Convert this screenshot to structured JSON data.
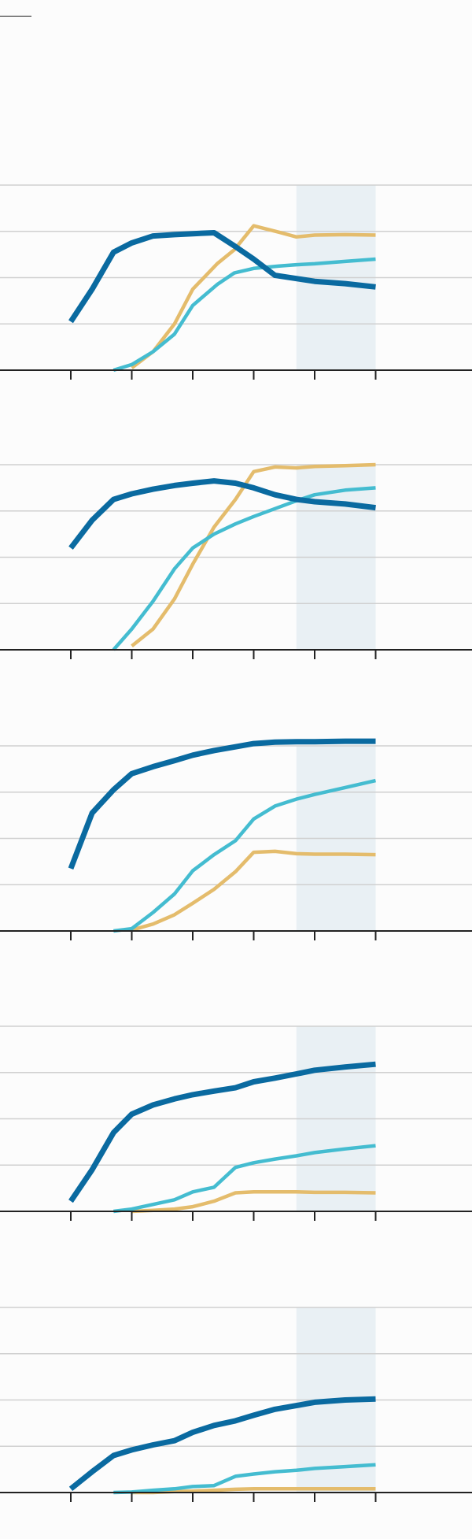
{
  "colors": {
    "background": "#fcfcfc",
    "gridline": "#d0d0d0",
    "axis": "#222222",
    "forecast_shade": "#e9f0f4",
    "series_dark": "#0a6aa0",
    "series_light": "#44bcd0",
    "series_gold": "#e4bc6c"
  },
  "chart_data": [
    {
      "type": "line",
      "grid": true,
      "legend": "none",
      "ylim": [
        0,
        4
      ],
      "x_ticks": [
        0,
        1,
        2,
        3,
        4,
        5
      ],
      "forecast_span": [
        3.7,
        5
      ],
      "series": [
        {
          "color": "series_gold",
          "x": [
            1.0,
            1.35,
            1.7,
            2.0,
            2.4,
            2.68,
            3.0,
            3.42,
            3.7,
            4.0,
            4.5,
            5.0
          ],
          "y": [
            0.05,
            0.4,
            1.0,
            1.75,
            2.3,
            2.6,
            3.12,
            2.98,
            2.88,
            2.92,
            2.93,
            2.92
          ]
        },
        {
          "color": "series_light",
          "x": [
            0.7,
            1.0,
            1.35,
            1.7,
            2.0,
            2.4,
            2.68,
            3.0,
            3.42,
            3.7,
            4.0,
            4.5,
            5.0
          ],
          "y": [
            0.0,
            0.12,
            0.4,
            0.78,
            1.4,
            1.85,
            2.1,
            2.2,
            2.25,
            2.28,
            2.3,
            2.35,
            2.4
          ]
        },
        {
          "color": "series_dark",
          "x": [
            0.0,
            0.35,
            0.7,
            1.0,
            1.35,
            1.7,
            2.0,
            2.35,
            2.7,
            3.0,
            3.35,
            3.7,
            4.0,
            4.5,
            5.0
          ],
          "y": [
            1.05,
            1.75,
            2.55,
            2.75,
            2.9,
            2.93,
            2.95,
            2.97,
            2.67,
            2.4,
            2.05,
            1.98,
            1.92,
            1.87,
            1.8
          ]
        }
      ]
    },
    {
      "type": "line",
      "grid": true,
      "legend": "none",
      "ylim": [
        0,
        4
      ],
      "x_ticks": [
        0,
        1,
        2,
        3,
        4,
        5
      ],
      "forecast_span": [
        3.7,
        5
      ],
      "series": [
        {
          "color": "series_gold",
          "x": [
            1.0,
            1.35,
            1.7,
            2.0,
            2.35,
            2.7,
            3.0,
            3.35,
            3.7,
            4.0,
            4.5,
            5.0
          ],
          "y": [
            0.08,
            0.45,
            1.1,
            1.85,
            2.65,
            3.25,
            3.85,
            3.95,
            3.93,
            3.96,
            3.98,
            4.0
          ]
        },
        {
          "color": "series_light",
          "x": [
            0.7,
            1.0,
            1.35,
            1.7,
            2.0,
            2.35,
            2.7,
            3.0,
            3.35,
            3.7,
            4.0,
            4.5,
            5.0
          ],
          "y": [
            0.0,
            0.45,
            1.05,
            1.75,
            2.2,
            2.5,
            2.72,
            2.88,
            3.05,
            3.22,
            3.35,
            3.45,
            3.5
          ]
        },
        {
          "color": "series_dark",
          "x": [
            0.0,
            0.35,
            0.7,
            1.0,
            1.35,
            1.7,
            2.0,
            2.35,
            2.7,
            3.0,
            3.35,
            3.7,
            4.0,
            4.5,
            5.0
          ],
          "y": [
            2.2,
            2.8,
            3.25,
            3.37,
            3.47,
            3.55,
            3.6,
            3.65,
            3.6,
            3.5,
            3.35,
            3.25,
            3.2,
            3.15,
            3.07
          ]
        }
      ]
    },
    {
      "type": "line",
      "grid": true,
      "legend": "none",
      "ylim": [
        0,
        4
      ],
      "x_ticks": [
        0,
        1,
        2,
        3,
        4,
        5
      ],
      "forecast_span": [
        3.7,
        5
      ],
      "series": [
        {
          "color": "series_gold",
          "x": [
            1.0,
            1.35,
            1.7,
            2.0,
            2.35,
            2.7,
            3.0,
            3.35,
            3.7,
            4.0,
            4.5,
            5.0
          ],
          "y": [
            0.02,
            0.15,
            0.35,
            0.6,
            0.9,
            1.28,
            1.7,
            1.72,
            1.67,
            1.66,
            1.66,
            1.65
          ]
        },
        {
          "color": "series_light",
          "x": [
            0.7,
            1.0,
            1.35,
            1.7,
            2.0,
            2.35,
            2.7,
            3.0,
            3.35,
            3.7,
            4.0,
            4.5,
            5.0
          ],
          "y": [
            0.0,
            0.05,
            0.4,
            0.8,
            1.3,
            1.65,
            1.95,
            2.42,
            2.7,
            2.85,
            2.95,
            3.1,
            3.25
          ]
        },
        {
          "color": "series_dark",
          "x": [
            0.0,
            0.35,
            0.7,
            1.0,
            1.35,
            1.7,
            2.0,
            2.35,
            2.7,
            3.0,
            3.35,
            3.7,
            4.0,
            4.5,
            5.0
          ],
          "y": [
            1.35,
            2.55,
            3.05,
            3.4,
            3.55,
            3.68,
            3.8,
            3.9,
            3.98,
            4.05,
            4.08,
            4.09,
            4.09,
            4.1,
            4.1
          ]
        }
      ]
    },
    {
      "type": "line",
      "grid": true,
      "legend": "none",
      "ylim": [
        0,
        4
      ],
      "x_ticks": [
        0,
        1,
        2,
        3,
        4,
        5
      ],
      "forecast_span": [
        3.7,
        5
      ],
      "series": [
        {
          "color": "series_gold",
          "x": [
            1.0,
            1.35,
            1.7,
            2.0,
            2.35,
            2.7,
            3.0,
            3.35,
            3.7,
            4.0,
            4.5,
            5.0
          ],
          "y": [
            0.0,
            0.02,
            0.05,
            0.1,
            0.22,
            0.4,
            0.42,
            0.42,
            0.42,
            0.41,
            0.41,
            0.4
          ]
        },
        {
          "color": "series_light",
          "x": [
            0.7,
            1.0,
            1.35,
            1.7,
            2.0,
            2.35,
            2.7,
            3.0,
            3.35,
            3.7,
            4.0,
            4.5,
            5.0
          ],
          "y": [
            0.0,
            0.05,
            0.15,
            0.25,
            0.42,
            0.52,
            0.95,
            1.05,
            1.13,
            1.2,
            1.27,
            1.35,
            1.42
          ]
        },
        {
          "color": "series_dark",
          "x": [
            0.0,
            0.35,
            0.7,
            1.0,
            1.35,
            1.7,
            2.0,
            2.35,
            2.7,
            3.0,
            3.35,
            3.7,
            4.0,
            4.5,
            5.0
          ],
          "y": [
            0.22,
            0.9,
            1.7,
            2.1,
            2.3,
            2.43,
            2.52,
            2.6,
            2.67,
            2.8,
            2.88,
            2.97,
            3.05,
            3.12,
            3.18
          ]
        }
      ]
    },
    {
      "type": "line",
      "grid": true,
      "legend": "none",
      "ylim": [
        0,
        4
      ],
      "x_ticks": [
        0,
        1,
        2,
        3,
        4,
        5
      ],
      "forecast_span": [
        3.7,
        5
      ],
      "series": [
        {
          "color": "series_gold",
          "x": [
            1.0,
            1.35,
            1.7,
            2.0,
            2.35,
            2.7,
            3.0,
            3.35,
            3.7,
            4.0,
            4.5,
            5.0
          ],
          "y": [
            0.0,
            0.0,
            0.02,
            0.03,
            0.05,
            0.07,
            0.08,
            0.08,
            0.08,
            0.08,
            0.08,
            0.08
          ]
        },
        {
          "color": "series_light",
          "x": [
            0.7,
            1.0,
            1.35,
            1.7,
            2.0,
            2.35,
            2.7,
            3.0,
            3.35,
            3.7,
            4.0,
            4.5,
            5.0
          ],
          "y": [
            0.0,
            0.01,
            0.05,
            0.08,
            0.13,
            0.15,
            0.35,
            0.4,
            0.45,
            0.48,
            0.52,
            0.56,
            0.6
          ]
        },
        {
          "color": "series_dark",
          "x": [
            0.0,
            0.35,
            0.7,
            1.0,
            1.35,
            1.7,
            2.0,
            2.35,
            2.7,
            3.0,
            3.35,
            3.7,
            4.0,
            4.5,
            5.0
          ],
          "y": [
            0.08,
            0.45,
            0.8,
            0.92,
            1.03,
            1.12,
            1.3,
            1.45,
            1.55,
            1.67,
            1.8,
            1.88,
            1.95,
            2.0,
            2.02
          ]
        }
      ]
    }
  ]
}
